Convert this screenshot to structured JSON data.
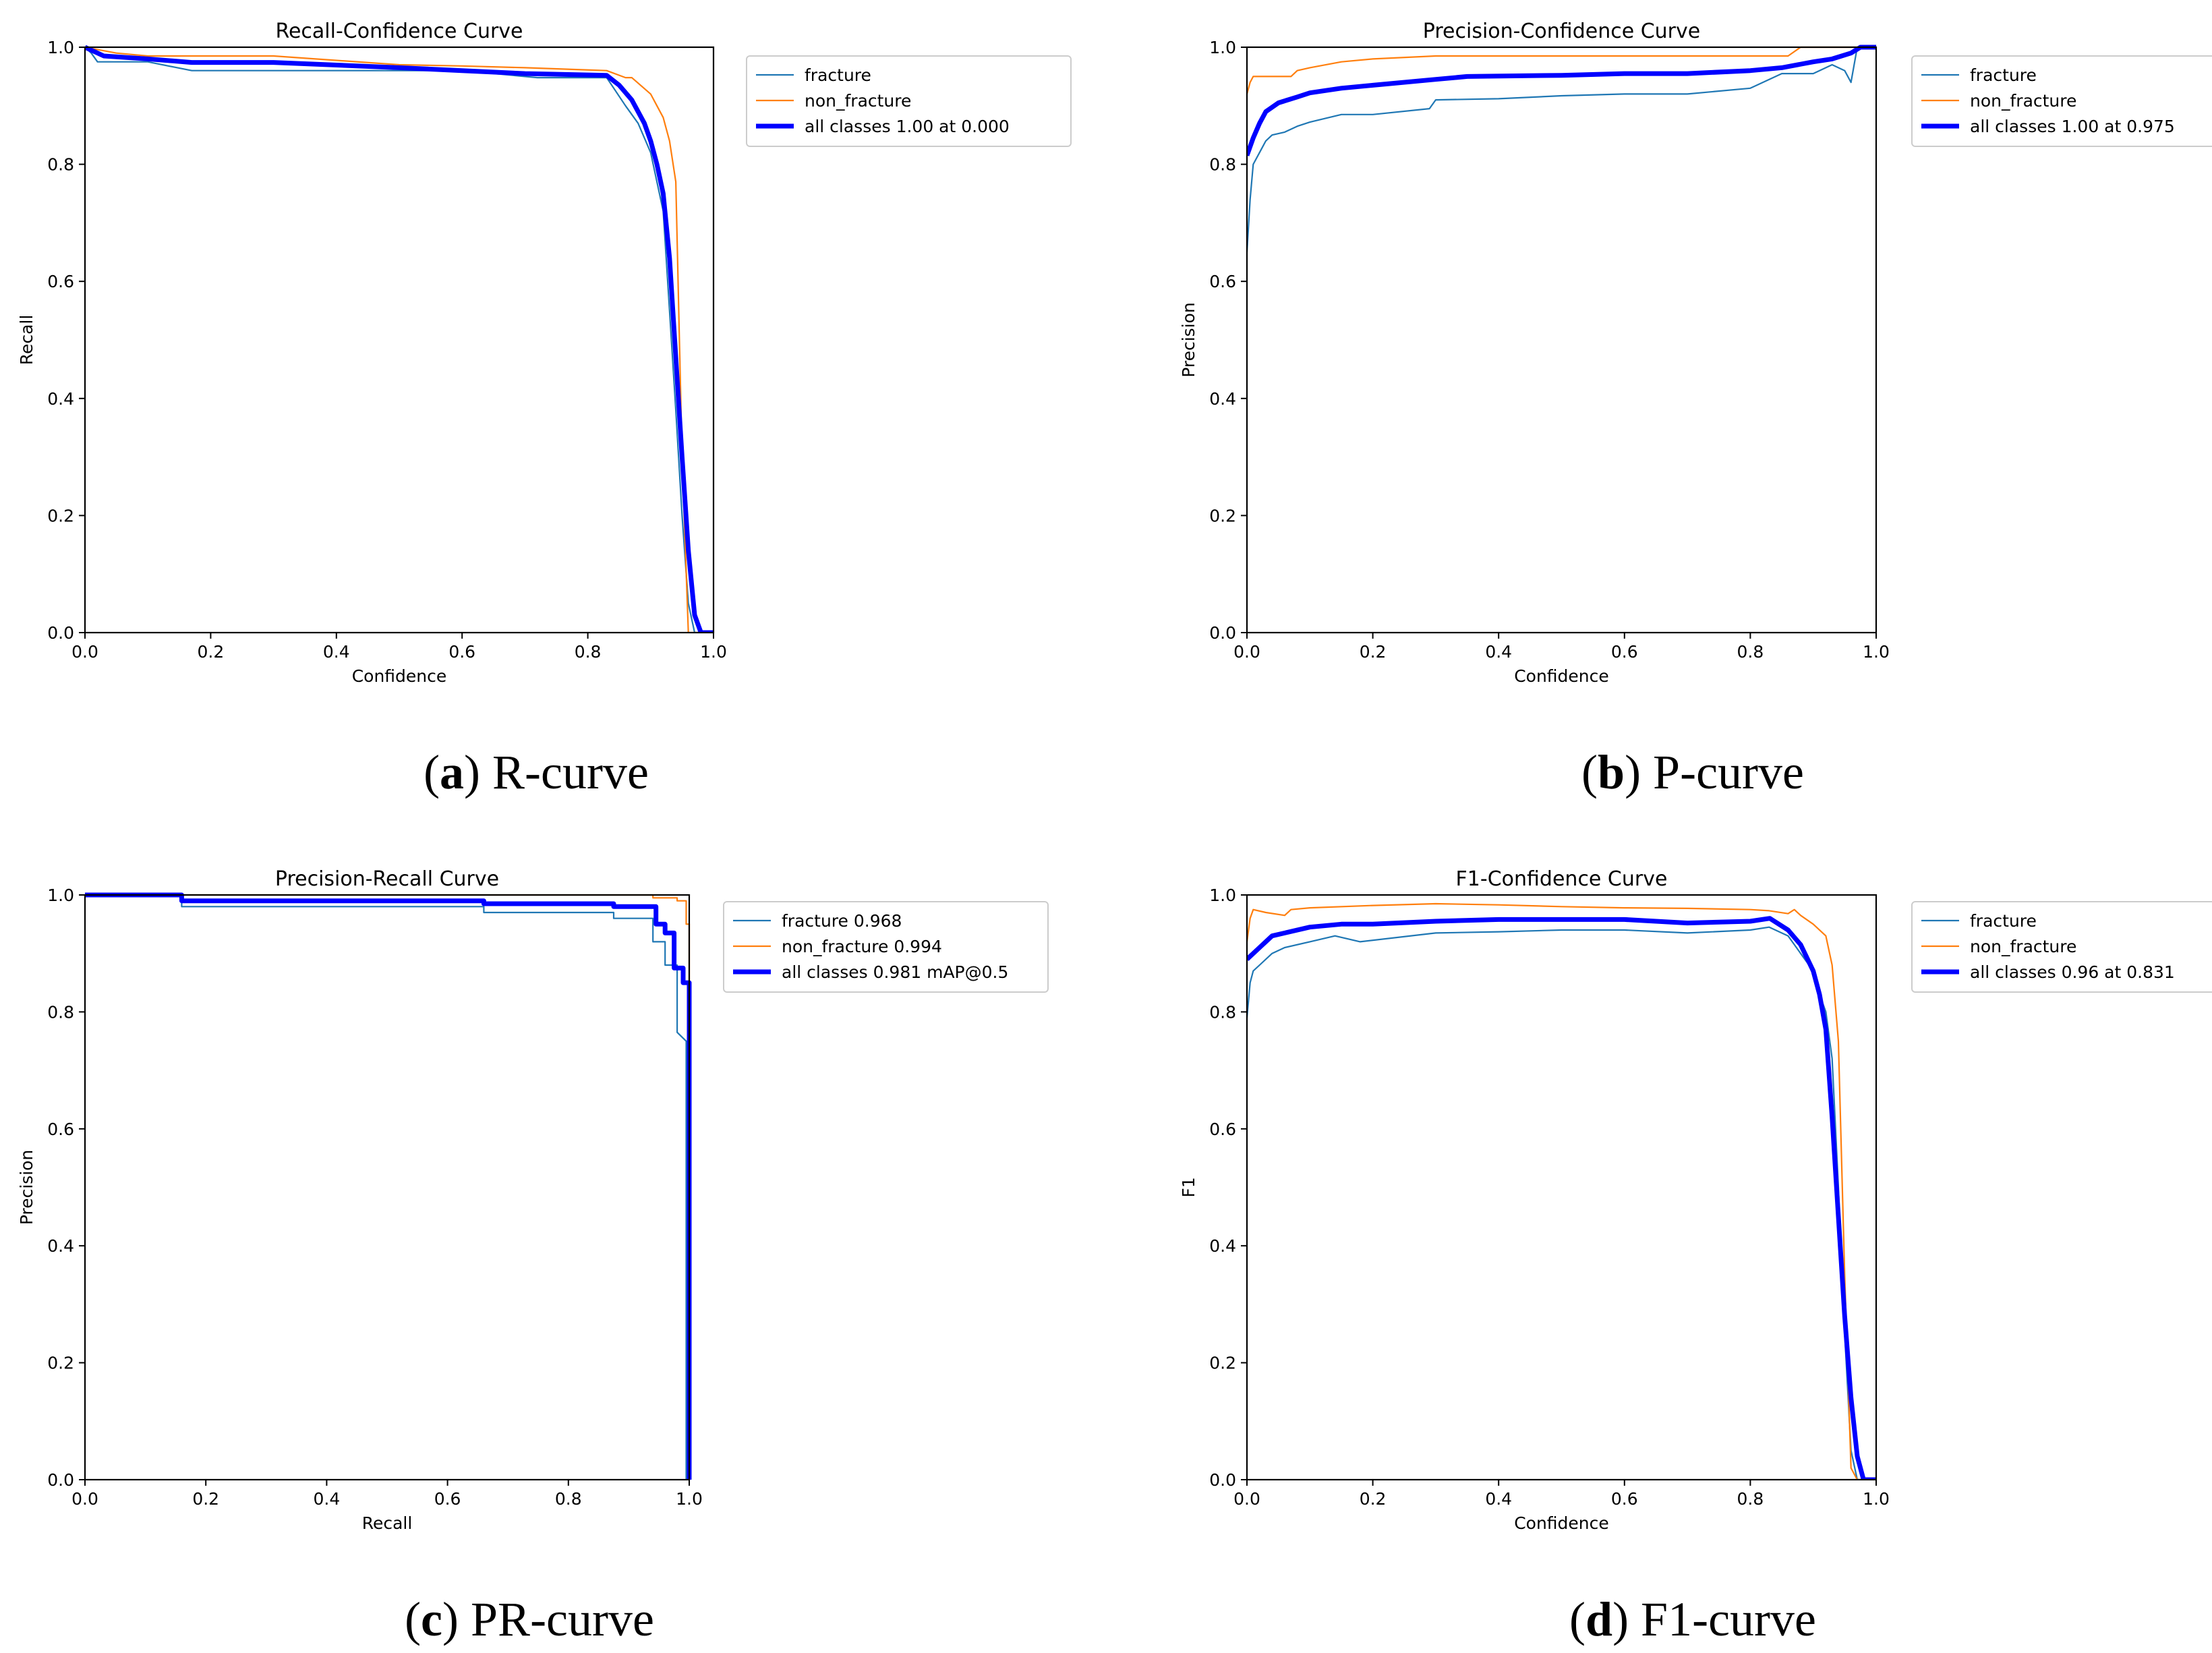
{
  "colors": {
    "fracture": "#1f77b4",
    "non_fracture": "#ff7f0e",
    "all_classes": "#0000ff"
  },
  "chart_data": [
    {
      "id": "r-curve",
      "type": "line",
      "title": "Recall-Confidence Curve",
      "xlabel": "Confidence",
      "ylabel": "Recall",
      "xlim": [
        0,
        1
      ],
      "ylim": [
        0,
        1
      ],
      "xticks": [
        "0.0",
        "0.2",
        "0.4",
        "0.6",
        "0.8",
        "1.0"
      ],
      "yticks": [
        "0.0",
        "0.2",
        "0.4",
        "0.6",
        "0.8",
        "1.0"
      ],
      "grid": false,
      "legend_position": "outside-right",
      "caption": {
        "letter": "a",
        "text": "R-curve"
      },
      "series": [
        {
          "name": "fracture",
          "legend": "fracture",
          "color": "#1f77b4",
          "width": 2.2,
          "x": [
            0,
            0.01,
            0.02,
            0.1,
            0.17,
            0.3,
            0.5,
            0.6,
            0.72,
            0.83,
            0.86,
            0.88,
            0.9,
            0.91,
            0.92,
            0.93,
            0.94,
            0.95,
            0.96,
            0.97,
            0.98,
            1.0
          ],
          "y": [
            1.0,
            0.99,
            0.975,
            0.975,
            0.96,
            0.96,
            0.96,
            0.96,
            0.948,
            0.948,
            0.9,
            0.87,
            0.82,
            0.77,
            0.72,
            0.55,
            0.38,
            0.2,
            0.05,
            0.0,
            0.0,
            0.0
          ]
        },
        {
          "name": "non_fracture",
          "legend": "non_fracture",
          "color": "#ff7f0e",
          "width": 2.2,
          "x": [
            0,
            0.05,
            0.1,
            0.3,
            0.5,
            0.6,
            0.7,
            0.83,
            0.86,
            0.87,
            0.9,
            0.91,
            0.92,
            0.93,
            0.94,
            0.95,
            0.96,
            0.97,
            1.0
          ],
          "y": [
            1.0,
            0.99,
            0.985,
            0.985,
            0.97,
            0.968,
            0.965,
            0.96,
            0.948,
            0.948,
            0.92,
            0.9,
            0.88,
            0.84,
            0.77,
            0.3,
            0.0,
            0.0,
            0.0
          ]
        },
        {
          "name": "all classes",
          "legend": "all classes 1.00 at 0.000",
          "color": "#0000ff",
          "width": 7,
          "x": [
            0,
            0.03,
            0.1,
            0.17,
            0.3,
            0.5,
            0.6,
            0.7,
            0.83,
            0.85,
            0.87,
            0.89,
            0.9,
            0.91,
            0.92,
            0.93,
            0.94,
            0.95,
            0.96,
            0.97,
            0.98,
            1.0
          ],
          "y": [
            1.0,
            0.985,
            0.98,
            0.974,
            0.974,
            0.965,
            0.96,
            0.955,
            0.952,
            0.935,
            0.91,
            0.87,
            0.84,
            0.8,
            0.75,
            0.64,
            0.47,
            0.3,
            0.14,
            0.03,
            0.0,
            0.0
          ]
        }
      ]
    },
    {
      "id": "p-curve",
      "type": "line",
      "title": "Precision-Confidence Curve",
      "xlabel": "Confidence",
      "ylabel": "Precision",
      "xlim": [
        0,
        1
      ],
      "ylim": [
        0,
        1
      ],
      "xticks": [
        "0.0",
        "0.2",
        "0.4",
        "0.6",
        "0.8",
        "1.0"
      ],
      "yticks": [
        "0.0",
        "0.2",
        "0.4",
        "0.6",
        "0.8",
        "1.0"
      ],
      "grid": false,
      "legend_position": "outside-right",
      "caption": {
        "letter": "b",
        "text": "P-curve"
      },
      "series": [
        {
          "name": "fracture",
          "legend": "fracture",
          "color": "#1f77b4",
          "width": 2.2,
          "x": [
            0,
            0.005,
            0.01,
            0.02,
            0.03,
            0.04,
            0.06,
            0.08,
            0.1,
            0.15,
            0.2,
            0.29,
            0.3,
            0.4,
            0.5,
            0.6,
            0.7,
            0.8,
            0.85,
            0.9,
            0.93,
            0.95,
            0.96,
            0.97,
            1.0
          ],
          "y": [
            0.65,
            0.74,
            0.8,
            0.82,
            0.84,
            0.85,
            0.855,
            0.865,
            0.872,
            0.885,
            0.885,
            0.895,
            0.91,
            0.912,
            0.917,
            0.92,
            0.92,
            0.93,
            0.955,
            0.955,
            0.97,
            0.96,
            0.94,
            1.0,
            1.0
          ]
        },
        {
          "name": "non_fracture",
          "legend": "non_fracture",
          "color": "#ff7f0e",
          "width": 2.2,
          "x": [
            0,
            0.005,
            0.01,
            0.02,
            0.03,
            0.07,
            0.08,
            0.1,
            0.15,
            0.2,
            0.3,
            0.4,
            0.5,
            0.6,
            0.7,
            0.8,
            0.86,
            0.88,
            0.9,
            1.0
          ],
          "y": [
            0.92,
            0.94,
            0.95,
            0.95,
            0.95,
            0.95,
            0.96,
            0.965,
            0.975,
            0.98,
            0.985,
            0.985,
            0.985,
            0.985,
            0.985,
            0.985,
            0.985,
            1.0,
            1.0,
            1.0
          ]
        },
        {
          "name": "all classes",
          "legend": "all classes 1.00 at 0.975",
          "color": "#0000ff",
          "width": 7,
          "x": [
            0,
            0.01,
            0.02,
            0.03,
            0.05,
            0.08,
            0.1,
            0.15,
            0.2,
            0.3,
            0.35,
            0.5,
            0.6,
            0.7,
            0.8,
            0.85,
            0.9,
            0.93,
            0.96,
            0.975,
            1.0
          ],
          "y": [
            0.815,
            0.845,
            0.87,
            0.89,
            0.905,
            0.915,
            0.922,
            0.93,
            0.935,
            0.945,
            0.95,
            0.952,
            0.955,
            0.955,
            0.96,
            0.965,
            0.975,
            0.98,
            0.99,
            1.0,
            1.0
          ]
        }
      ]
    },
    {
      "id": "pr-curve",
      "type": "line",
      "title": "Precision-Recall Curve",
      "xlabel": "Recall",
      "ylabel": "Precision",
      "xlim": [
        0,
        1
      ],
      "ylim": [
        0,
        1
      ],
      "xticks": [
        "0.0",
        "0.2",
        "0.4",
        "0.6",
        "0.8",
        "1.0"
      ],
      "yticks": [
        "0.0",
        "0.2",
        "0.4",
        "0.6",
        "0.8",
        "1.0"
      ],
      "grid": false,
      "legend_position": "outside-right",
      "caption": {
        "letter": "c",
        "text": "PR-curve"
      },
      "series": [
        {
          "name": "fracture",
          "legend": "fracture 0.968",
          "color": "#1f77b4",
          "width": 2.2,
          "x": [
            0,
            0.16,
            0.16,
            0.66,
            0.66,
            0.875,
            0.875,
            0.94,
            0.94,
            0.96,
            0.96,
            0.98,
            0.98,
            0.995,
            0.995
          ],
          "y": [
            1.0,
            1.0,
            0.98,
            0.98,
            0.97,
            0.97,
            0.96,
            0.96,
            0.92,
            0.92,
            0.88,
            0.88,
            0.765,
            0.75,
            0.0
          ]
        },
        {
          "name": "non_fracture",
          "legend": "non_fracture 0.994",
          "color": "#ff7f0e",
          "width": 2.2,
          "x": [
            0,
            0.94,
            0.94,
            0.98,
            0.98,
            0.995,
            0.995,
            1.0,
            1.0
          ],
          "y": [
            1.0,
            1.0,
            0.995,
            0.995,
            0.99,
            0.99,
            0.95,
            0.95,
            0.0
          ]
        },
        {
          "name": "all classes",
          "legend": "all classes 0.981 mAP@0.5",
          "color": "#0000ff",
          "width": 7,
          "x": [
            0,
            0.16,
            0.16,
            0.66,
            0.66,
            0.875,
            0.875,
            0.945,
            0.945,
            0.96,
            0.96,
            0.975,
            0.975,
            0.99,
            0.99,
            1.0,
            1.0
          ],
          "y": [
            1.0,
            1.0,
            0.99,
            0.99,
            0.985,
            0.985,
            0.98,
            0.98,
            0.95,
            0.95,
            0.935,
            0.935,
            0.875,
            0.875,
            0.85,
            0.85,
            0.0
          ]
        }
      ]
    },
    {
      "id": "f1-curve",
      "type": "line",
      "title": "F1-Confidence Curve",
      "xlabel": "Confidence",
      "ylabel": "F1",
      "xlim": [
        0,
        1
      ],
      "ylim": [
        0,
        1
      ],
      "xticks": [
        "0.0",
        "0.2",
        "0.4",
        "0.6",
        "0.8",
        "1.0"
      ],
      "yticks": [
        "0.0",
        "0.2",
        "0.4",
        "0.6",
        "0.8",
        "1.0"
      ],
      "grid": false,
      "legend_position": "outside-right",
      "caption": {
        "letter": "d",
        "text": "F1-curve"
      },
      "series": [
        {
          "name": "fracture",
          "legend": "fracture",
          "color": "#1f77b4",
          "width": 2.2,
          "x": [
            0,
            0.005,
            0.01,
            0.02,
            0.04,
            0.06,
            0.1,
            0.14,
            0.18,
            0.3,
            0.4,
            0.5,
            0.6,
            0.7,
            0.8,
            0.83,
            0.86,
            0.88,
            0.9,
            0.91,
            0.92,
            0.93,
            0.94,
            0.95,
            0.96,
            0.97,
            1.0
          ],
          "y": [
            0.79,
            0.85,
            0.87,
            0.88,
            0.9,
            0.91,
            0.92,
            0.93,
            0.92,
            0.935,
            0.937,
            0.94,
            0.94,
            0.935,
            0.94,
            0.945,
            0.93,
            0.9,
            0.87,
            0.83,
            0.8,
            0.72,
            0.5,
            0.25,
            0.05,
            0.0,
            0.0
          ]
        },
        {
          "name": "non_fracture",
          "legend": "non_fracture",
          "color": "#ff7f0e",
          "width": 2.2,
          "x": [
            0,
            0.005,
            0.01,
            0.03,
            0.06,
            0.07,
            0.1,
            0.2,
            0.3,
            0.4,
            0.5,
            0.6,
            0.7,
            0.8,
            0.83,
            0.86,
            0.87,
            0.88,
            0.9,
            0.92,
            0.93,
            0.94,
            0.95,
            0.96,
            0.97,
            1.0
          ],
          "y": [
            0.92,
            0.96,
            0.975,
            0.97,
            0.965,
            0.975,
            0.978,
            0.982,
            0.985,
            0.983,
            0.98,
            0.978,
            0.977,
            0.975,
            0.973,
            0.968,
            0.975,
            0.965,
            0.95,
            0.93,
            0.88,
            0.75,
            0.35,
            0.02,
            0.0,
            0.0
          ]
        },
        {
          "name": "all classes",
          "legend": "all classes 0.96 at 0.831",
          "color": "#0000ff",
          "width": 7,
          "x": [
            0,
            0.02,
            0.04,
            0.06,
            0.1,
            0.15,
            0.2,
            0.3,
            0.4,
            0.5,
            0.6,
            0.7,
            0.8,
            0.831,
            0.86,
            0.88,
            0.9,
            0.91,
            0.92,
            0.93,
            0.94,
            0.95,
            0.96,
            0.97,
            0.98,
            1.0
          ],
          "y": [
            0.89,
            0.91,
            0.93,
            0.935,
            0.945,
            0.95,
            0.95,
            0.955,
            0.958,
            0.958,
            0.958,
            0.952,
            0.955,
            0.96,
            0.94,
            0.915,
            0.87,
            0.83,
            0.77,
            0.62,
            0.45,
            0.28,
            0.14,
            0.04,
            0.0,
            0.0
          ]
        }
      ]
    }
  ]
}
